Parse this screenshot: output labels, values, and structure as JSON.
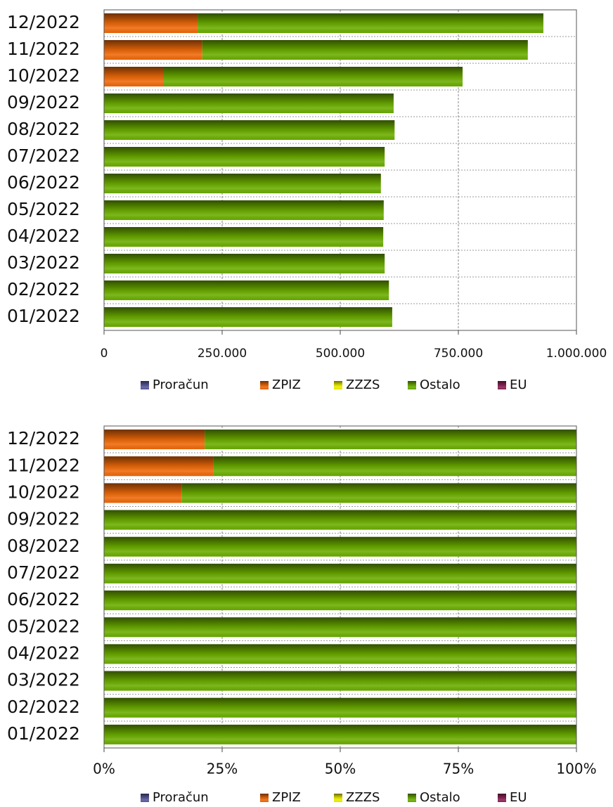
{
  "chart_data": [
    {
      "type": "bar",
      "orientation": "horizontal",
      "stacked": true,
      "grid": true,
      "categories": [
        "01/2022",
        "02/2022",
        "03/2022",
        "04/2022",
        "05/2022",
        "06/2022",
        "07/2022",
        "08/2022",
        "09/2022",
        "10/2022",
        "11/2022",
        "12/2022"
      ],
      "series": [
        {
          "name": "Proračun",
          "color": "#5b5b9e",
          "values": [
            0,
            0,
            0,
            0,
            0,
            0,
            0,
            0,
            0,
            0,
            0,
            0
          ]
        },
        {
          "name": "ZPIZ",
          "color": "#f06a0a",
          "values": [
            0,
            0,
            0,
            0,
            0,
            0,
            0,
            0,
            0,
            125000,
            208000,
            198000
          ]
        },
        {
          "name": "ZZZS",
          "color": "#f0f000",
          "values": [
            0,
            0,
            0,
            0,
            0,
            0,
            0,
            0,
            0,
            0,
            0,
            0
          ]
        },
        {
          "name": "Ostalo",
          "color": "#6cae00",
          "values": [
            610000,
            603000,
            594000,
            591000,
            592000,
            586000,
            594000,
            615000,
            613000,
            634000,
            689000,
            732000
          ]
        },
        {
          "name": "EU",
          "color": "#8e2458",
          "values": [
            0,
            0,
            0,
            0,
            0,
            0,
            0,
            0,
            0,
            0,
            0,
            0
          ]
        }
      ],
      "xlim": [
        0,
        1000000
      ],
      "xticks": [
        0,
        {
          "value": 250000,
          "label": "250.000"
        },
        {
          "value": 500000,
          "label": "500.000"
        },
        {
          "value": 750000,
          "label": "750.000"
        },
        {
          "value": 1000000,
          "label": "1.000.000"
        }
      ],
      "legend": "bottom"
    },
    {
      "type": "bar",
      "orientation": "horizontal",
      "stacked": true,
      "grid": true,
      "categories": [
        "01/2022",
        "02/2022",
        "03/2022",
        "04/2022",
        "05/2022",
        "06/2022",
        "07/2022",
        "08/2022",
        "09/2022",
        "10/2022",
        "11/2022",
        "12/2022"
      ],
      "series": [
        {
          "name": "Proračun",
          "color": "#5b5b9e",
          "values": [
            0,
            0,
            0,
            0,
            0,
            0,
            0,
            0,
            0,
            0,
            0,
            0
          ]
        },
        {
          "name": "ZPIZ",
          "color": "#f06a0a",
          "values": [
            0,
            0,
            0,
            0,
            0,
            0,
            0,
            0,
            0,
            16.4,
            23.2,
            21.3
          ]
        },
        {
          "name": "ZZZS",
          "color": "#f0f000",
          "values": [
            0,
            0,
            0,
            0,
            0,
            0,
            0,
            0,
            0,
            0,
            0,
            0
          ]
        },
        {
          "name": "Ostalo",
          "color": "#6cae00",
          "values": [
            100,
            100,
            100,
            100,
            100,
            100,
            100,
            100,
            100,
            83.6,
            76.8,
            78.7
          ]
        },
        {
          "name": "EU",
          "color": "#8e2458",
          "values": [
            0,
            0,
            0,
            0,
            0,
            0,
            0,
            0,
            0,
            0,
            0,
            0
          ]
        }
      ],
      "xlim": [
        0,
        100
      ],
      "xticks": [
        {
          "value": 0,
          "label": "0%"
        },
        {
          "value": 25,
          "label": "25%"
        },
        {
          "value": 50,
          "label": "50%"
        },
        {
          "value": 75,
          "label": "75%"
        },
        {
          "value": 100,
          "label": "100%"
        }
      ],
      "legend": "bottom"
    }
  ]
}
